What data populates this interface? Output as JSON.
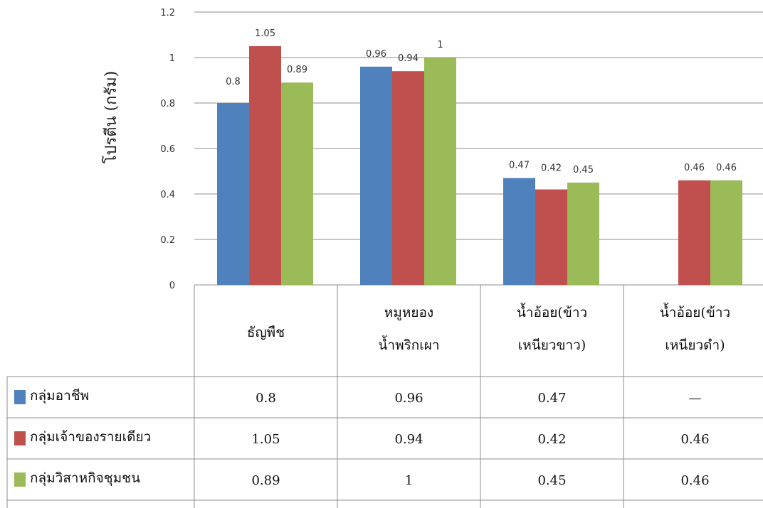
{
  "chart_data": {
    "type": "bar",
    "ylabel": "โปรตีน (กรัม)",
    "ylim": [
      0,
      1.2
    ],
    "yticks": [
      "0",
      "0.2",
      "0.4",
      "0.6",
      "0.8",
      "1",
      "1.2"
    ],
    "grid": true,
    "legend": "data-table",
    "categories": [
      [
        "ธัญพืช"
      ],
      [
        "หมูหยอง",
        "น้ำพริกเผา"
      ],
      [
        "น้ำอ้อย(ข้าว",
        "เหนียวขาว)"
      ],
      [
        "น้ำอ้อย(ข้าว",
        "เหนียวดำ)"
      ]
    ],
    "series": [
      {
        "name": "กลุ่มอาชีพ",
        "color": "#4F81BD",
        "values": [
          0.8,
          0.96,
          0.47,
          null
        ],
        "labels": [
          "0.8",
          "0.96",
          "0.47",
          ""
        ],
        "table": [
          "0.8",
          "0.96",
          "0.47",
          "—"
        ]
      },
      {
        "name": "กลุ่มเจ้าของรายเดียว",
        "color": "#C0504D",
        "values": [
          1.05,
          0.94,
          0.42,
          0.46
        ],
        "labels": [
          "1.05",
          "0.94",
          "0.42",
          "0.46"
        ],
        "table": [
          "1.05",
          "0.94",
          "0.42",
          "0.46"
        ]
      },
      {
        "name": "กลุ่มวิสาหกิจชุมชน",
        "color": "#9BBB59",
        "values": [
          0.89,
          1,
          0.45,
          0.46
        ],
        "labels": [
          "0.89",
          "1",
          "0.45",
          "0.46"
        ],
        "table": [
          "0.89",
          "1",
          "0.45",
          "0.46"
        ]
      }
    ]
  }
}
